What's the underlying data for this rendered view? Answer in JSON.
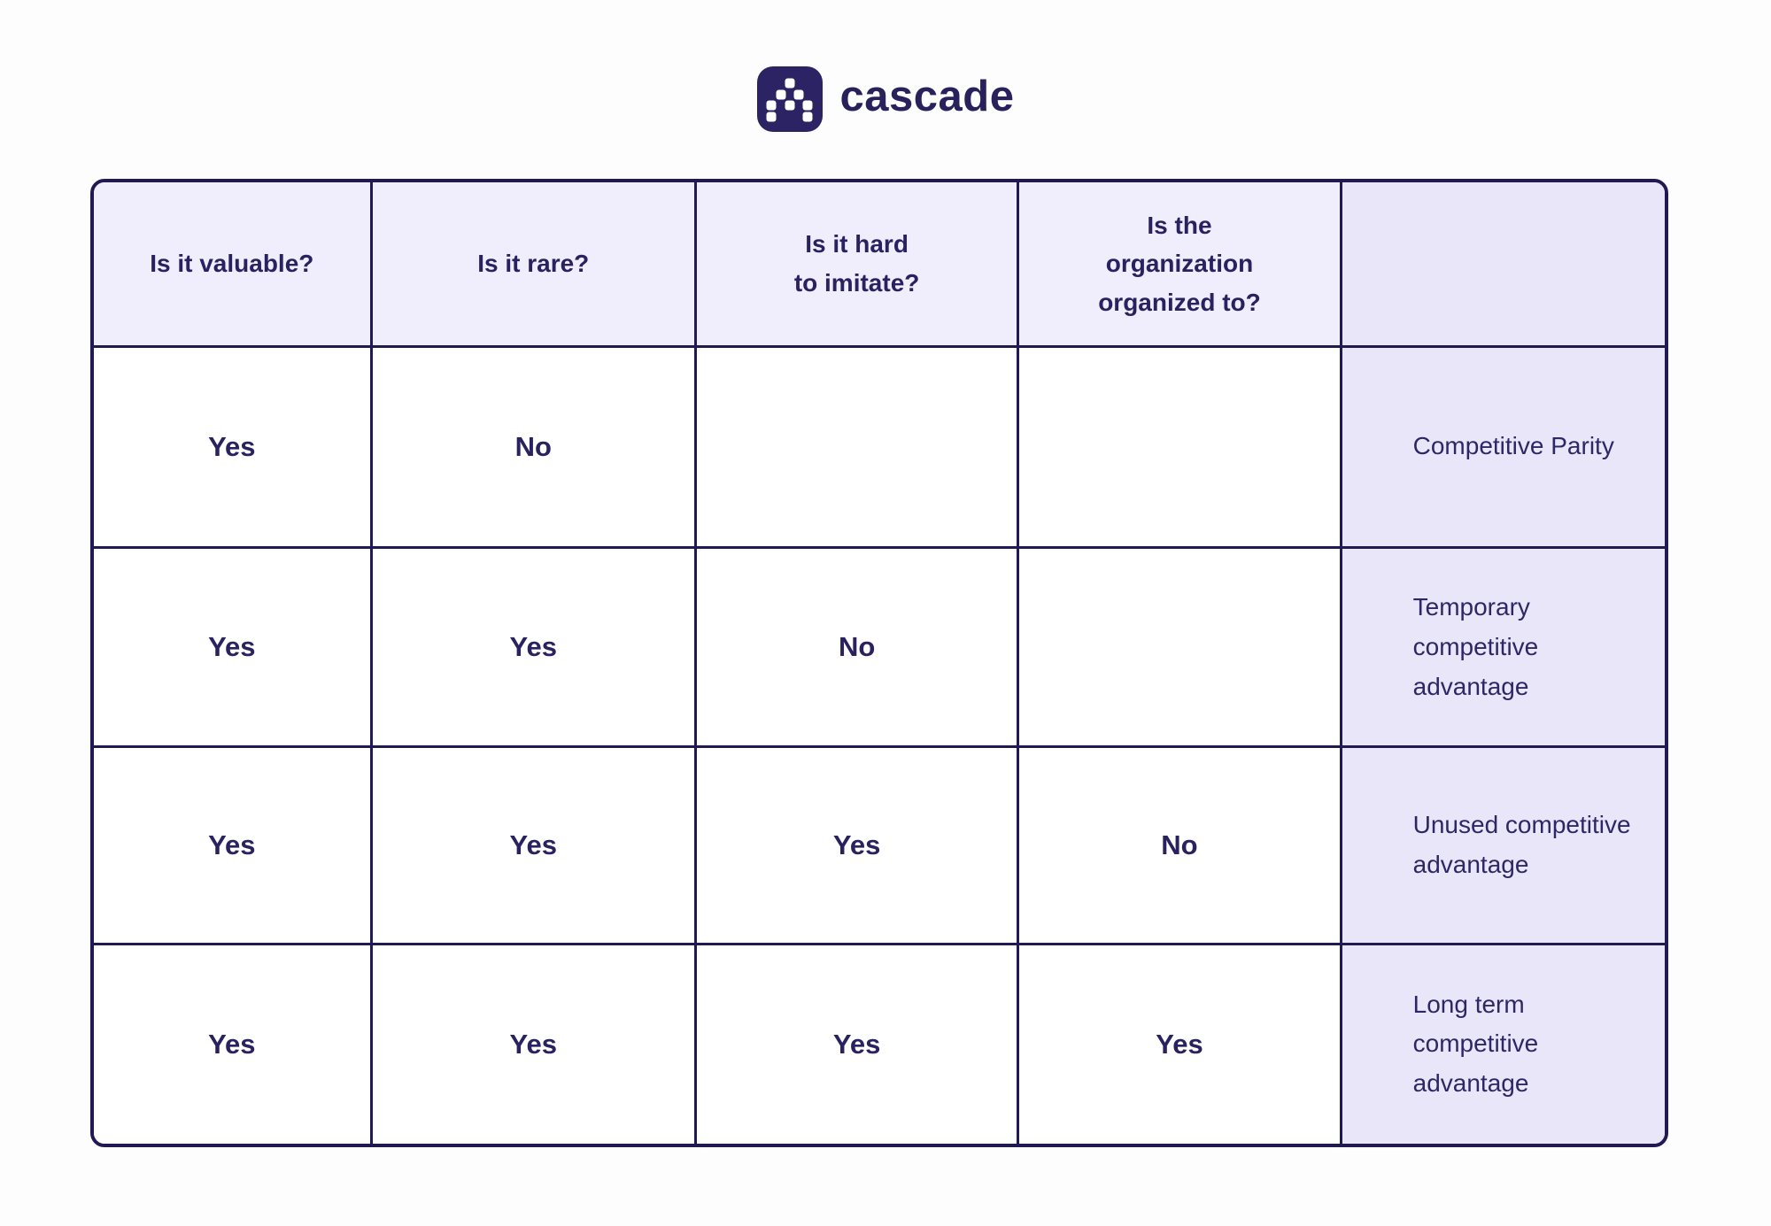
{
  "brand": {
    "name": "cascade",
    "logo_icon": "cascade-dots-icon",
    "logo_bg": "#2b2363",
    "logo_dot_color": "#ffffff"
  },
  "colors": {
    "text_navy": "#2a2260",
    "border_navy": "#211a52",
    "header_bg": "#f0eefc",
    "result_bg": "#e9e6f9",
    "cell_bg": "#ffffff",
    "page_bg": "#fdfdfe"
  },
  "table": {
    "columns": [
      {
        "label": "Is it valuable?"
      },
      {
        "label": "Is it rare?"
      },
      {
        "label": "Is it hard\nto imitate?"
      },
      {
        "label": "Is the\norganization\norganized to?"
      },
      {
        "label": ""
      }
    ],
    "rows": [
      {
        "cells": [
          "Yes",
          "No",
          "",
          ""
        ],
        "result": "Competitive Parity"
      },
      {
        "cells": [
          "Yes",
          "Yes",
          "No",
          ""
        ],
        "result": "Temporary competitive advantage"
      },
      {
        "cells": [
          "Yes",
          "Yes",
          "Yes",
          "No"
        ],
        "result": "Unused competitive advantage"
      },
      {
        "cells": [
          "Yes",
          "Yes",
          "Yes",
          "Yes"
        ],
        "result": "Long term competitive advantage"
      }
    ]
  }
}
